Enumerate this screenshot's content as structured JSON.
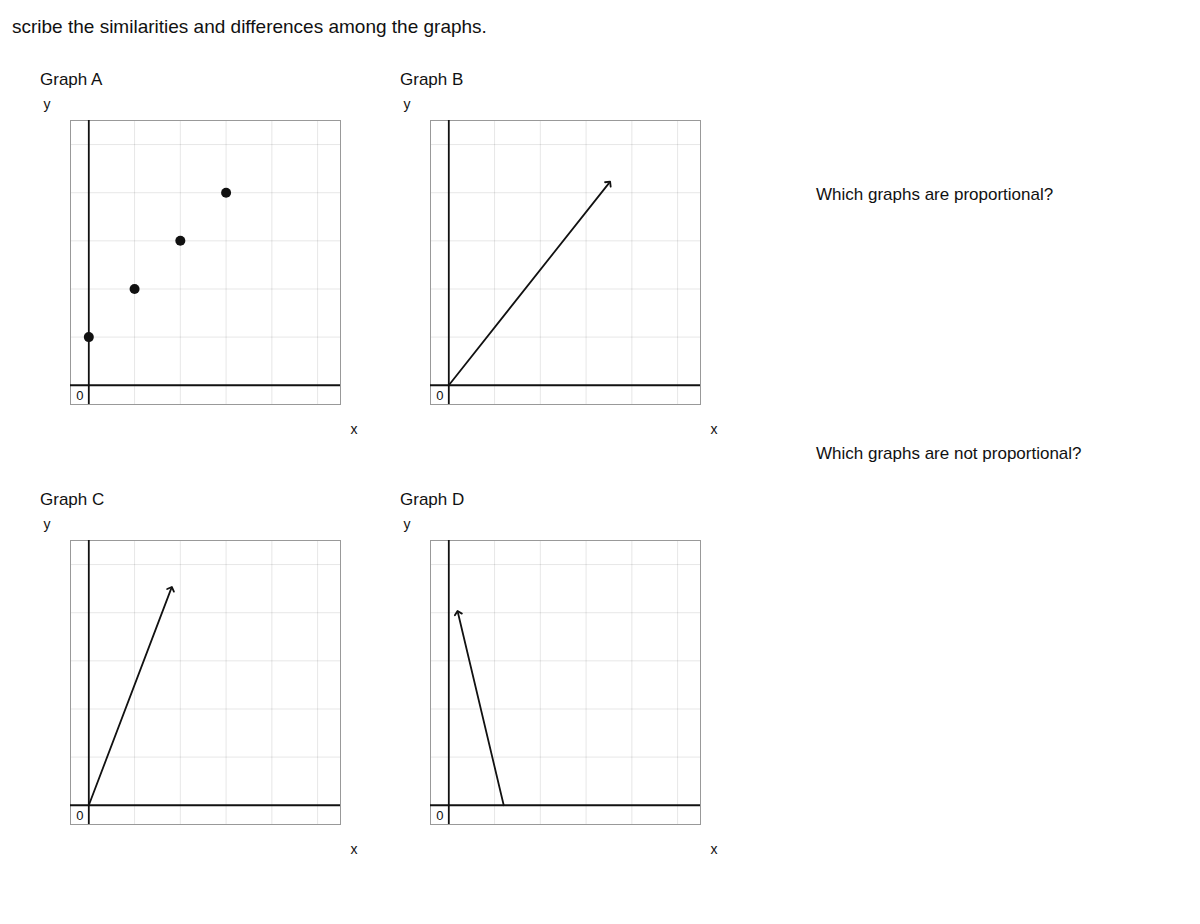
{
  "title": "scribe the similarities and differences among the graphs.",
  "annotations": [
    "Which graphs are proportional?",
    "Which graphs are not proportional?"
  ],
  "chart_data": [
    {
      "type": "scatter",
      "title": "Graph A",
      "x": [
        0,
        1,
        2,
        3
      ],
      "values": [
        1,
        2,
        3,
        4
      ],
      "color": "#111111",
      "xlim": [
        -0.4,
        5.5
      ],
      "ylim": [
        -0.4,
        5.5
      ],
      "xticks": [
        1,
        2,
        3,
        4,
        5
      ],
      "yticks": [
        1,
        2,
        3,
        4,
        5
      ],
      "grid": true,
      "tick_labels": false,
      "xlabel": "x",
      "ylabel": "y",
      "annotations": [
        {
          "text": "0",
          "x": 0,
          "y": 0
        }
      ]
    },
    {
      "type": "line",
      "title": "Graph B",
      "x": [
        0,
        3.5
      ],
      "values": [
        0,
        4.2
      ],
      "color": "#111111",
      "marker": "arrow",
      "xlim": [
        -0.4,
        5.5
      ],
      "ylim": [
        -0.4,
        5.5
      ],
      "xticks": [
        1,
        2,
        3,
        4,
        5
      ],
      "yticks": [
        1,
        2,
        3,
        4,
        5
      ],
      "grid": true,
      "tick_labels": false,
      "xlabel": "x",
      "ylabel": "y",
      "annotations": [
        {
          "text": "0",
          "x": 0,
          "y": 0
        }
      ]
    },
    {
      "type": "line",
      "title": "Graph C",
      "x": [
        0,
        1.8
      ],
      "values": [
        0,
        4.5
      ],
      "color": "#111111",
      "marker": "arrow",
      "xlim": [
        -0.4,
        5.5
      ],
      "ylim": [
        -0.4,
        5.5
      ],
      "xticks": [
        1,
        2,
        3,
        4,
        5
      ],
      "yticks": [
        1,
        2,
        3,
        4,
        5
      ],
      "grid": true,
      "tick_labels": false,
      "xlabel": "x",
      "ylabel": "y",
      "annotations": [
        {
          "text": "0",
          "x": 0,
          "y": 0
        }
      ]
    },
    {
      "type": "line",
      "title": "Graph D",
      "x": [
        1.2,
        0.2
      ],
      "values": [
        0,
        4.0
      ],
      "color": "#111111",
      "marker": "arrow",
      "xlim": [
        -0.4,
        5.5
      ],
      "ylim": [
        -0.4,
        5.5
      ],
      "xticks": [
        1,
        2,
        3,
        4,
        5
      ],
      "yticks": [
        1,
        2,
        3,
        4,
        5
      ],
      "grid": true,
      "tick_labels": false,
      "xlabel": "x",
      "ylabel": "y",
      "annotations": [
        {
          "text": "0",
          "x": 0,
          "y": 0
        }
      ]
    }
  ]
}
